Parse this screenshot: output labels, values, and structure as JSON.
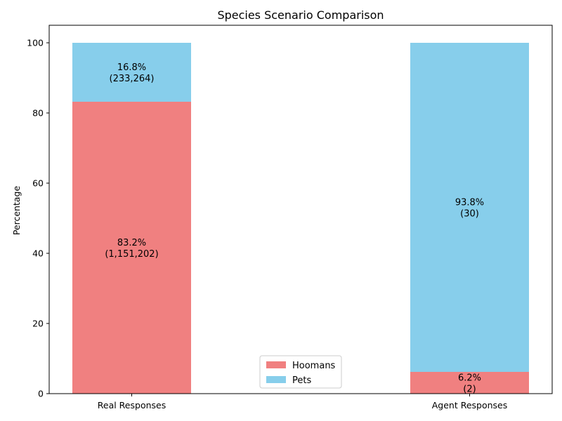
{
  "chart_data": {
    "type": "bar",
    "stacked": true,
    "title": "Species Scenario Comparison",
    "xlabel": "",
    "ylabel": "Percentage",
    "ylim": [
      0,
      105
    ],
    "yticks": [
      0,
      20,
      40,
      60,
      80,
      100
    ],
    "categories": [
      "Real Responses",
      "Agent Responses"
    ],
    "series": [
      {
        "name": "Hoomans",
        "color": "#f08080",
        "values": [
          83.2,
          6.2
        ],
        "labels": [
          [
            "83.2%",
            "(1,151,202)"
          ],
          [
            "6.2%",
            "(2)"
          ]
        ]
      },
      {
        "name": "Pets",
        "color": "#87ceeb",
        "values": [
          16.8,
          93.8
        ],
        "labels": [
          [
            "16.8%",
            "(233,264)"
          ],
          [
            "93.8%",
            "(30)"
          ]
        ]
      }
    ],
    "grid": false,
    "legend": {
      "position": "bottom-center",
      "entries": [
        "Hoomans",
        "Pets"
      ]
    }
  }
}
